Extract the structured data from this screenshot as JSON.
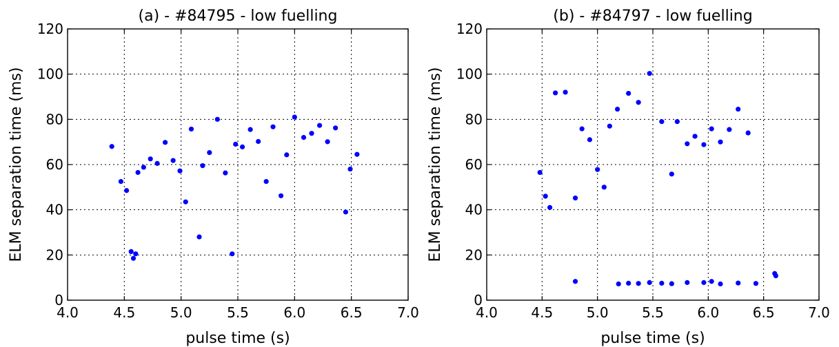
{
  "colors": {
    "point": "#0000ff",
    "axis": "#000000",
    "background": "#ffffff"
  },
  "chart_data": [
    {
      "type": "scatter",
      "title": "(a) - #84795 - low fuelling",
      "xlabel": "pulse time (s)",
      "ylabel": "ELM separation time (ms)",
      "xlim": [
        4.0,
        7.0
      ],
      "ylim": [
        0,
        120
      ],
      "xticks": [
        "4.0",
        "4.5",
        "5.0",
        "5.5",
        "6.0",
        "6.5",
        "7.0"
      ],
      "yticks": [
        "0",
        "20",
        "40",
        "60",
        "80",
        "100",
        "120"
      ],
      "grid": true,
      "points": [
        [
          4.39,
          68
        ],
        [
          4.47,
          52.5
        ],
        [
          4.52,
          48.5
        ],
        [
          4.56,
          21.5
        ],
        [
          4.58,
          18.5
        ],
        [
          4.6,
          20.5
        ],
        [
          4.62,
          56.5
        ],
        [
          4.67,
          58.8
        ],
        [
          4.73,
          62.5
        ],
        [
          4.79,
          60.5
        ],
        [
          4.86,
          69.8
        ],
        [
          4.93,
          61.8
        ],
        [
          4.99,
          57.2
        ],
        [
          5.04,
          43.5
        ],
        [
          5.09,
          75.7
        ],
        [
          5.16,
          28
        ],
        [
          5.19,
          59.5
        ],
        [
          5.25,
          65.3
        ],
        [
          5.32,
          80
        ],
        [
          5.39,
          56.3
        ],
        [
          5.45,
          20.5
        ],
        [
          5.48,
          69
        ],
        [
          5.54,
          67.8
        ],
        [
          5.61,
          75.5
        ],
        [
          5.68,
          70.2
        ],
        [
          5.75,
          52.5
        ],
        [
          5.81,
          76.7
        ],
        [
          5.88,
          46.2
        ],
        [
          5.93,
          64.3
        ],
        [
          6.0,
          81
        ],
        [
          6.08,
          72
        ],
        [
          6.15,
          73.8
        ],
        [
          6.22,
          77.3
        ],
        [
          6.29,
          70.1
        ],
        [
          6.36,
          76.2
        ],
        [
          6.45,
          39
        ],
        [
          6.49,
          58
        ],
        [
          6.55,
          64.5
        ]
      ]
    },
    {
      "type": "scatter",
      "title": "(b) - #84797 - low fuelling",
      "xlabel": "pulse time (s)",
      "ylabel": "ELM separation time (ms)",
      "xlim": [
        4.0,
        7.0
      ],
      "ylim": [
        0,
        120
      ],
      "xticks": [
        "4.0",
        "4.5",
        "5.0",
        "5.5",
        "6.0",
        "6.5",
        "7.0"
      ],
      "yticks": [
        "0",
        "20",
        "40",
        "60",
        "80",
        "100",
        "120"
      ],
      "grid": true,
      "points": [
        [
          4.48,
          56.5
        ],
        [
          4.53,
          46
        ],
        [
          4.57,
          41
        ],
        [
          4.62,
          91.7
        ],
        [
          4.71,
          92
        ],
        [
          4.8,
          45.2
        ],
        [
          4.8,
          8.3
        ],
        [
          4.86,
          75.8
        ],
        [
          4.93,
          71
        ],
        [
          5.0,
          57.8
        ],
        [
          5.06,
          50
        ],
        [
          5.11,
          77
        ],
        [
          5.18,
          84.5
        ],
        [
          5.19,
          7.2
        ],
        [
          5.28,
          91.5
        ],
        [
          5.28,
          7.5
        ],
        [
          5.37,
          87.5
        ],
        [
          5.37,
          7.4
        ],
        [
          5.47,
          100.3
        ],
        [
          5.47,
          7.8
        ],
        [
          5.58,
          79
        ],
        [
          5.58,
          7.5
        ],
        [
          5.67,
          55.8
        ],
        [
          5.67,
          7.3
        ],
        [
          5.72,
          79
        ],
        [
          5.81,
          69.2
        ],
        [
          5.81,
          7.8
        ],
        [
          5.88,
          72.5
        ],
        [
          5.96,
          68.8
        ],
        [
          5.96,
          7.8
        ],
        [
          6.03,
          75.8
        ],
        [
          6.03,
          8.3
        ],
        [
          6.11,
          70
        ],
        [
          6.11,
          7.2
        ],
        [
          6.19,
          75.5
        ],
        [
          6.27,
          84.5
        ],
        [
          6.27,
          7.6
        ],
        [
          6.36,
          74
        ],
        [
          6.43,
          7.4
        ],
        [
          6.6,
          11.8
        ],
        [
          6.61,
          10.8
        ]
      ]
    }
  ]
}
